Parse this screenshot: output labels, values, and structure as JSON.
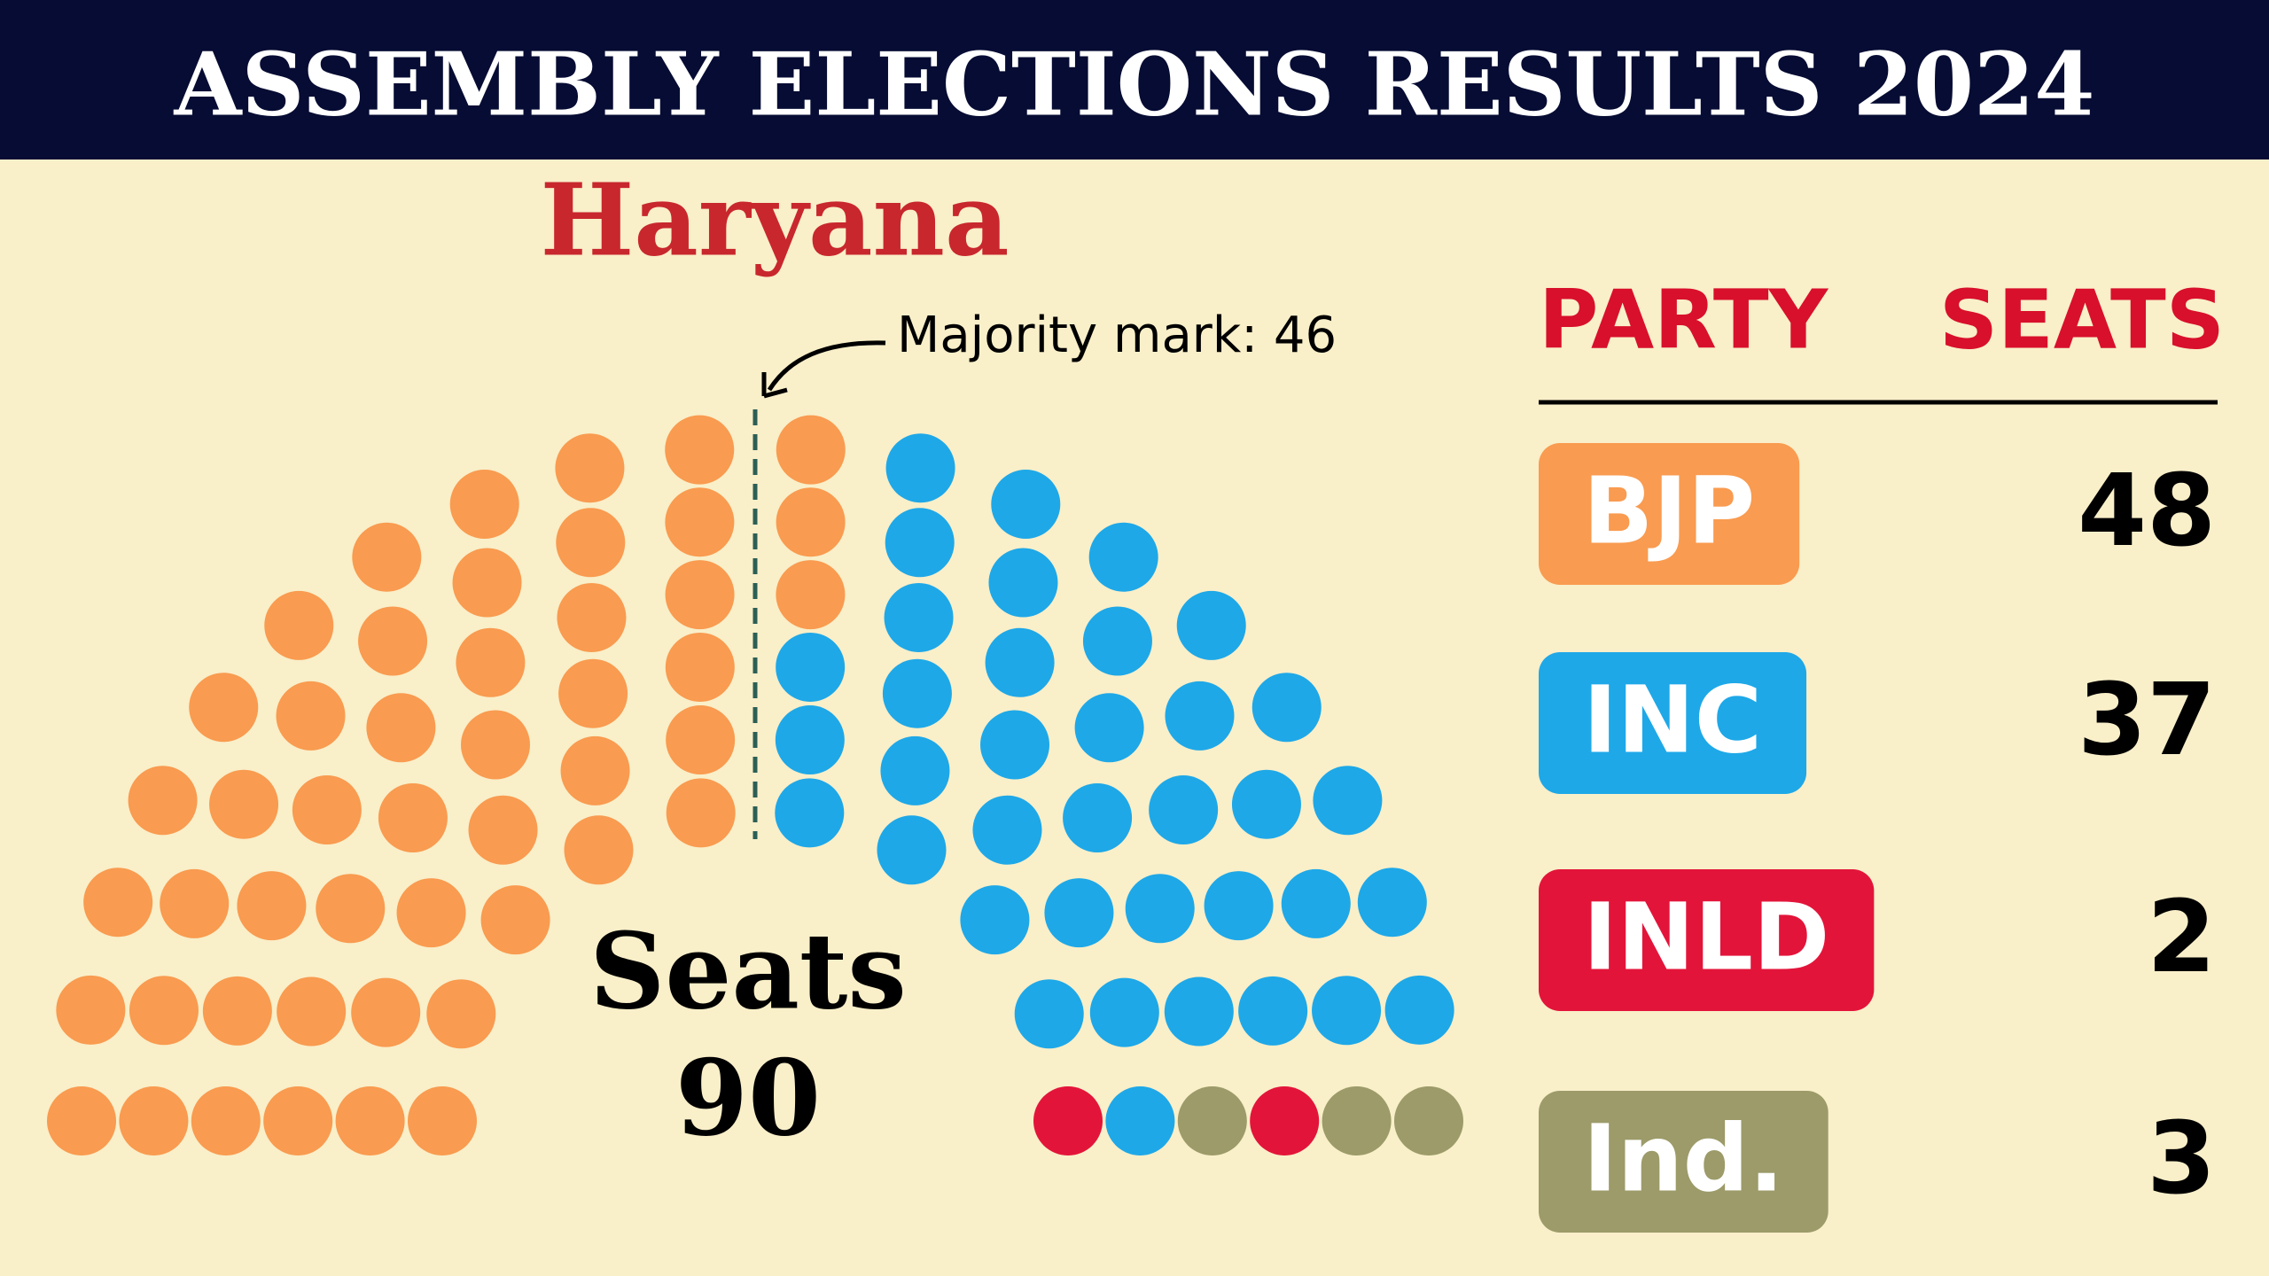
{
  "header": {
    "title": "ASSEMBLY ELECTIONS RESULTS 2024"
  },
  "chart_data": {
    "type": "parliament",
    "title": "Haryana",
    "annotation": "Majority mark: 46",
    "center_label": "Seats",
    "total": 90,
    "columns": [
      "PARTY",
      "SEATS"
    ],
    "categories": [
      "BJP",
      "INC",
      "INLD",
      "Ind."
    ],
    "values": [
      48,
      37,
      2,
      3
    ],
    "colors": [
      "#f99b50",
      "#1ea8e8",
      "#e3143a",
      "#9c9b69"
    ]
  }
}
